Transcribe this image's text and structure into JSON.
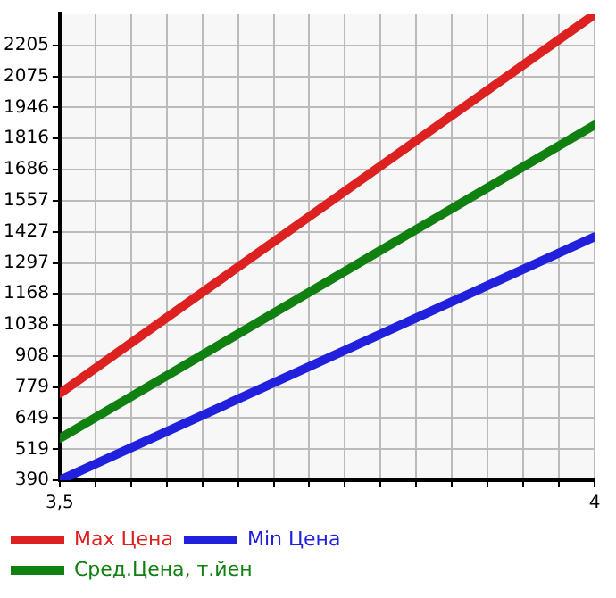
{
  "chart_data": {
    "type": "line",
    "x": [
      3.5,
      4
    ],
    "series": [
      {
        "name": "Max Цена",
        "color": "#dd2020",
        "values": [
          752,
          2335
        ]
      },
      {
        "name": "Min Цена",
        "color": "#2020dd",
        "values": [
          390,
          1406
        ]
      },
      {
        "name": "Сред.Цена, т.йен",
        "color": "#108010",
        "values": [
          564,
          1873
        ]
      }
    ],
    "xlim": [
      3.5,
      4
    ],
    "xticks": [
      {
        "value": 3.5,
        "label": "3,5"
      },
      {
        "value": 3.5333,
        "label": null
      },
      {
        "value": 3.5667,
        "label": null
      },
      {
        "value": 3.6,
        "label": null
      },
      {
        "value": 3.6333,
        "label": null
      },
      {
        "value": 3.6667,
        "label": null
      },
      {
        "value": 3.7,
        "label": null
      },
      {
        "value": 3.7333,
        "label": null
      },
      {
        "value": 3.7667,
        "label": null
      },
      {
        "value": 3.8,
        "label": null
      },
      {
        "value": 3.8333,
        "label": null
      },
      {
        "value": 3.8667,
        "label": null
      },
      {
        "value": 3.9,
        "label": null
      },
      {
        "value": 3.9333,
        "label": null
      },
      {
        "value": 3.9667,
        "label": null
      },
      {
        "value": 4,
        "label": "4"
      }
    ],
    "ylim": [
      390,
      2335
    ],
    "yticks": [
      390,
      519,
      649,
      779,
      908,
      1038,
      1168,
      1297,
      1427,
      1557,
      1686,
      1816,
      1946,
      2075,
      2205
    ],
    "grid": true,
    "legend": "bottom",
    "marker": "none",
    "line_style": "solid"
  }
}
